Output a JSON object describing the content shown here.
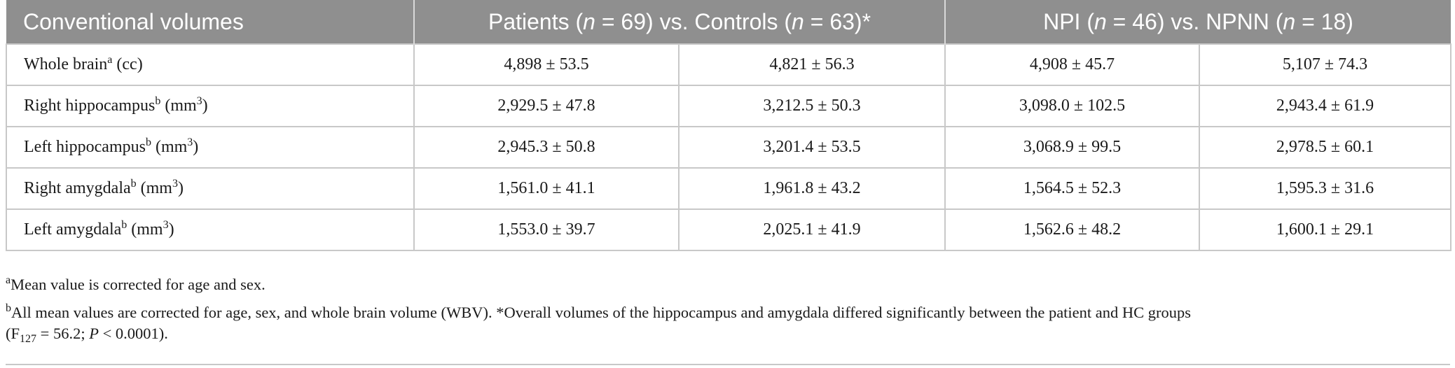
{
  "table": {
    "header": {
      "col0": "Conventional volumes",
      "col1_pre": "Patients (",
      "col1_n1": "n",
      "col1_mid": " = 69) vs. Controls (",
      "col1_n2": "n",
      "col1_post": " = 63)*",
      "col2_pre": "NPI (",
      "col2_n1": "n",
      "col2_mid": " = 46) vs. NPNN (",
      "col2_n2": "n",
      "col2_post": " = 18)"
    },
    "rows": [
      {
        "label": "Whole brain",
        "sup": "a",
        "unit_pre": " (cc)",
        "unit_sup": "",
        "unit_post": "",
        "patients": "4,898 ± 53.5",
        "controls": "4,821 ± 56.3",
        "npi": "4,908 ± 45.7",
        "npnn": "5,107 ± 74.3"
      },
      {
        "label": "Right hippocampus",
        "sup": "b",
        "unit_pre": " (mm",
        "unit_sup": "3",
        "unit_post": ")",
        "patients": "2,929.5 ± 47.8",
        "controls": "3,212.5 ± 50.3",
        "npi": "3,098.0 ± 102.5",
        "npnn": "2,943.4 ± 61.9"
      },
      {
        "label": "Left hippocampus",
        "sup": "b",
        "unit_pre": " (mm",
        "unit_sup": "3",
        "unit_post": ")",
        "patients": "2,945.3 ± 50.8",
        "controls": "3,201.4 ± 53.5",
        "npi": "3,068.9 ± 99.5",
        "npnn": "2,978.5 ± 60.1"
      },
      {
        "label": "Right amygdala",
        "sup": "b",
        "unit_pre": " (mm",
        "unit_sup": "3",
        "unit_post": ")",
        "patients": "1,561.0 ± 41.1",
        "controls": "1,961.8 ± 43.2",
        "npi": "1,564.5 ± 52.3",
        "npnn": "1,595.3 ± 31.6"
      },
      {
        "label": "Left amygdala",
        "sup": "b",
        "unit_pre": " (mm",
        "unit_sup": "3",
        "unit_post": ")",
        "patients": "1,553.0 ± 39.7",
        "controls": "2,025.1 ± 41.9",
        "npi": "1,562.6 ± 48.2",
        "npnn": "1,600.1 ± 29.1"
      }
    ]
  },
  "footnotes": {
    "a_mark": "a",
    "a_text": "Mean value is corrected for age and sex.",
    "b_mark": "b",
    "b_text": "All mean values are corrected for age, sex, and whole brain volume (WBV). *Overall volumes of the hippocampus and amygdala differed significantly between the patient and HC groups",
    "b_stat_pre": "(F",
    "b_stat_sub": "127",
    "b_stat_mid": " = 56.2; ",
    "b_stat_p": "P",
    "b_stat_post": " < 0.0001)."
  }
}
